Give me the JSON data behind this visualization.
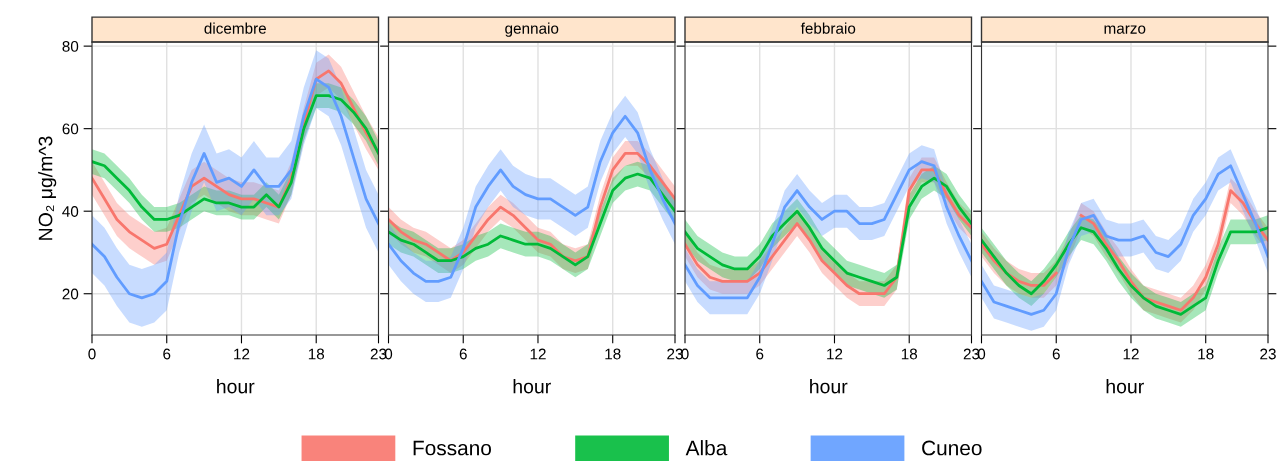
{
  "chart_data": [
    {
      "type": "line",
      "title": "dicembre",
      "xlabel": "hour",
      "ylabel": "NO₂ μg/m^3",
      "x": [
        0,
        1,
        2,
        3,
        4,
        5,
        6,
        7,
        8,
        9,
        10,
        11,
        12,
        13,
        14,
        15,
        16,
        17,
        18,
        19,
        20,
        21,
        22,
        23
      ],
      "xlim": [
        0,
        23
      ],
      "xticks": [
        0,
        6,
        12,
        18,
        23
      ],
      "ylim": [
        10,
        81
      ],
      "yticks": [
        20,
        40,
        60,
        80
      ],
      "grid": true,
      "legend": "bottom",
      "series": [
        {
          "name": "Fossano",
          "color": "#f8766d",
          "values": [
            48,
            43,
            38,
            35,
            33,
            31,
            32,
            39,
            46,
            48,
            46,
            44,
            43,
            43,
            42,
            41,
            48,
            61,
            72,
            74,
            71,
            65,
            59,
            54
          ],
          "lower": [
            44,
            39,
            34,
            31,
            29,
            27,
            28,
            35,
            42,
            44,
            42,
            40,
            39,
            39,
            38,
            37,
            44,
            57,
            68,
            70,
            67,
            61,
            55,
            50
          ],
          "upper": [
            52,
            47,
            42,
            39,
            37,
            35,
            36,
            43,
            50,
            52,
            50,
            48,
            47,
            47,
            46,
            45,
            52,
            65,
            76,
            78,
            75,
            69,
            63,
            58
          ]
        },
        {
          "name": "Alba",
          "color": "#00ba38",
          "values": [
            52,
            51,
            48,
            45,
            41,
            38,
            38,
            39,
            41,
            43,
            42,
            42,
            41,
            41,
            44,
            41,
            47,
            60,
            68,
            68,
            67,
            64,
            60,
            54
          ],
          "lower": [
            49,
            48,
            45,
            42,
            38,
            35,
            35,
            36,
            38,
            40,
            39,
            39,
            38,
            38,
            41,
            38,
            44,
            57,
            65,
            65,
            64,
            61,
            57,
            51
          ],
          "upper": [
            55,
            54,
            51,
            48,
            44,
            41,
            41,
            42,
            44,
            46,
            45,
            45,
            44,
            44,
            47,
            44,
            50,
            63,
            71,
            71,
            70,
            67,
            63,
            57
          ]
        },
        {
          "name": "Cuneo",
          "color": "#619cff",
          "values": [
            32,
            29,
            24,
            20,
            19,
            20,
            23,
            37,
            47,
            54,
            47,
            48,
            46,
            50,
            46,
            46,
            50,
            63,
            72,
            70,
            63,
            53,
            43,
            37
          ],
          "lower": [
            25,
            22,
            17,
            13,
            12,
            13,
            16,
            30,
            40,
            47,
            40,
            41,
            39,
            43,
            39,
            39,
            43,
            56,
            65,
            63,
            56,
            46,
            36,
            30
          ],
          "upper": [
            39,
            36,
            31,
            27,
            26,
            27,
            30,
            44,
            54,
            61,
            54,
            55,
            53,
            57,
            53,
            53,
            57,
            70,
            79,
            77,
            70,
            60,
            50,
            44
          ]
        }
      ]
    },
    {
      "type": "line",
      "title": "gennaio",
      "xlabel": "hour",
      "x": [
        0,
        1,
        2,
        3,
        4,
        5,
        6,
        7,
        8,
        9,
        10,
        11,
        12,
        13,
        14,
        15,
        16,
        17,
        18,
        19,
        20,
        21,
        22,
        23
      ],
      "xlim": [
        0,
        23
      ],
      "xticks": [
        0,
        6,
        12,
        18,
        23
      ],
      "ylim": [
        10,
        81
      ],
      "yticks": [
        20,
        40,
        60,
        80
      ],
      "grid": true,
      "tick_labels": "x",
      "series": [
        {
          "color": "#f8766d",
          "values": [
            38,
            35,
            33,
            32,
            30,
            28,
            30,
            34,
            38,
            41,
            39,
            36,
            33,
            32,
            29,
            28,
            29,
            41,
            50,
            54,
            54,
            51,
            47,
            43
          ],
          "lower": [
            35,
            32,
            30,
            29,
            27,
            25,
            27,
            31,
            35,
            38,
            36,
            33,
            30,
            29,
            26,
            25,
            26,
            38,
            47,
            51,
            51,
            48,
            44,
            40
          ],
          "upper": [
            41,
            38,
            36,
            35,
            33,
            31,
            33,
            37,
            41,
            44,
            42,
            39,
            36,
            35,
            32,
            31,
            32,
            44,
            53,
            57,
            57,
            54,
            50,
            46
          ]
        },
        {
          "color": "#00ba38",
          "values": [
            35,
            33,
            32,
            30,
            28,
            28,
            29,
            31,
            32,
            34,
            33,
            32,
            32,
            31,
            29,
            27,
            29,
            37,
            45,
            48,
            49,
            48,
            44,
            40
          ],
          "lower": [
            32,
            30,
            29,
            27,
            25,
            25,
            26,
            28,
            29,
            31,
            30,
            29,
            29,
            28,
            26,
            24,
            26,
            34,
            42,
            45,
            46,
            45,
            41,
            37
          ],
          "upper": [
            38,
            36,
            35,
            33,
            31,
            31,
            32,
            34,
            35,
            37,
            36,
            35,
            35,
            34,
            32,
            30,
            32,
            40,
            48,
            51,
            52,
            51,
            47,
            43
          ]
        },
        {
          "color": "#619cff",
          "values": [
            32,
            28,
            25,
            23,
            23,
            24,
            31,
            41,
            46,
            50,
            46,
            44,
            43,
            43,
            41,
            39,
            41,
            52,
            59,
            63,
            59,
            50,
            43,
            37
          ],
          "lower": [
            27,
            23,
            20,
            18,
            18,
            19,
            26,
            36,
            41,
            45,
            41,
            39,
            38,
            38,
            36,
            34,
            36,
            47,
            54,
            58,
            54,
            45,
            38,
            32
          ],
          "upper": [
            37,
            33,
            30,
            28,
            28,
            29,
            36,
            46,
            51,
            55,
            51,
            49,
            48,
            48,
            46,
            44,
            46,
            57,
            64,
            68,
            64,
            55,
            48,
            42
          ]
        }
      ]
    },
    {
      "type": "line",
      "title": "febbraio",
      "xlabel": "hour",
      "x": [
        0,
        1,
        2,
        3,
        4,
        5,
        6,
        7,
        8,
        9,
        10,
        11,
        12,
        13,
        14,
        15,
        16,
        17,
        18,
        19,
        20,
        21,
        22,
        23
      ],
      "xlim": [
        0,
        23
      ],
      "xticks": [
        0,
        6,
        12,
        18,
        23
      ],
      "ylim": [
        10,
        81
      ],
      "yticks": [
        20,
        40,
        60,
        80
      ],
      "grid": true,
      "tick_labels": "x",
      "series": [
        {
          "color": "#f8766d",
          "values": [
            32,
            27,
            24,
            23,
            23,
            23,
            25,
            29,
            33,
            37,
            33,
            28,
            25,
            22,
            20,
            20,
            20,
            24,
            45,
            50,
            50,
            44,
            39,
            36
          ],
          "lower": [
            29,
            24,
            21,
            20,
            20,
            20,
            22,
            26,
            30,
            34,
            30,
            25,
            22,
            19,
            17,
            17,
            17,
            21,
            42,
            47,
            47,
            41,
            36,
            33
          ],
          "upper": [
            35,
            30,
            27,
            26,
            26,
            26,
            28,
            32,
            36,
            40,
            36,
            31,
            28,
            25,
            23,
            23,
            23,
            27,
            48,
            53,
            53,
            47,
            42,
            39
          ]
        },
        {
          "color": "#00ba38",
          "values": [
            35,
            31,
            29,
            27,
            26,
            26,
            29,
            34,
            37,
            40,
            36,
            31,
            28,
            25,
            24,
            23,
            22,
            24,
            41,
            46,
            48,
            46,
            41,
            37
          ],
          "lower": [
            32,
            28,
            26,
            24,
            23,
            23,
            26,
            31,
            34,
            37,
            33,
            28,
            25,
            22,
            21,
            20,
            19,
            21,
            38,
            43,
            45,
            43,
            38,
            34
          ],
          "upper": [
            38,
            34,
            32,
            30,
            29,
            29,
            32,
            37,
            40,
            43,
            39,
            34,
            31,
            28,
            27,
            26,
            25,
            27,
            44,
            49,
            51,
            49,
            44,
            40
          ]
        },
        {
          "color": "#619cff",
          "values": [
            27,
            22,
            19,
            19,
            19,
            19,
            24,
            32,
            41,
            45,
            41,
            38,
            40,
            40,
            37,
            37,
            38,
            44,
            50,
            52,
            51,
            41,
            34,
            28
          ],
          "lower": [
            23,
            18,
            15,
            15,
            15,
            15,
            20,
            28,
            37,
            41,
            37,
            34,
            36,
            36,
            33,
            33,
            34,
            40,
            46,
            48,
            47,
            37,
            30,
            24
          ],
          "upper": [
            31,
            26,
            23,
            23,
            23,
            23,
            28,
            36,
            45,
            49,
            45,
            42,
            44,
            44,
            41,
            41,
            42,
            48,
            54,
            56,
            55,
            45,
            38,
            32
          ]
        }
      ]
    },
    {
      "type": "line",
      "title": "marzo",
      "xlabel": "hour",
      "x": [
        0,
        1,
        2,
        3,
        4,
        5,
        6,
        7,
        8,
        9,
        10,
        11,
        12,
        13,
        14,
        15,
        16,
        17,
        18,
        19,
        20,
        21,
        22,
        23
      ],
      "xlim": [
        0,
        23
      ],
      "xticks": [
        0,
        6,
        12,
        18,
        23
      ],
      "ylim": [
        10,
        81
      ],
      "yticks": [
        20,
        40,
        60,
        80
      ],
      "grid": true,
      "tick_labels": "x",
      "series": [
        {
          "color": "#f8766d",
          "values": [
            32,
            28,
            25,
            23,
            22,
            22,
            25,
            null,
            39,
            37,
            32,
            28,
            23,
            19,
            18,
            17,
            16,
            19,
            24,
            32,
            45,
            42,
            37,
            33
          ],
          "lower": [
            29,
            25,
            22,
            20,
            19,
            19,
            22,
            28,
            36,
            34,
            29,
            25,
            20,
            16,
            15,
            14,
            13,
            16,
            21,
            29,
            42,
            39,
            34,
            30
          ],
          "upper": [
            35,
            31,
            28,
            26,
            25,
            25,
            28,
            34,
            42,
            40,
            35,
            31,
            26,
            22,
            21,
            20,
            19,
            22,
            27,
            35,
            48,
            45,
            40,
            36
          ]
        },
        {
          "color": "#00ba38",
          "values": [
            33,
            29,
            25,
            22,
            20,
            23,
            27,
            32,
            36,
            35,
            31,
            26,
            22,
            19,
            17,
            16,
            15,
            17,
            19,
            28,
            35,
            35,
            35,
            36
          ],
          "lower": [
            30,
            26,
            22,
            19,
            17,
            20,
            24,
            29,
            33,
            32,
            28,
            23,
            19,
            16,
            14,
            13,
            12,
            14,
            16,
            25,
            32,
            32,
            32,
            33
          ],
          "upper": [
            36,
            32,
            28,
            25,
            23,
            26,
            30,
            35,
            39,
            38,
            34,
            29,
            25,
            22,
            20,
            19,
            18,
            20,
            22,
            31,
            38,
            38,
            38,
            39
          ]
        },
        {
          "color": "#619cff",
          "values": [
            23,
            18,
            17,
            16,
            15,
            16,
            20,
            31,
            38,
            39,
            34,
            33,
            33,
            34,
            30,
            29,
            32,
            39,
            43,
            49,
            51,
            44,
            37,
            29
          ],
          "lower": [
            19,
            14,
            13,
            12,
            11,
            12,
            16,
            27,
            34,
            35,
            30,
            29,
            29,
            30,
            26,
            25,
            28,
            35,
            39,
            45,
            47,
            40,
            33,
            25
          ],
          "upper": [
            27,
            22,
            21,
            20,
            19,
            20,
            24,
            35,
            42,
            43,
            38,
            37,
            37,
            38,
            34,
            33,
            36,
            43,
            47,
            53,
            55,
            48,
            41,
            33
          ]
        }
      ]
    }
  ]
}
